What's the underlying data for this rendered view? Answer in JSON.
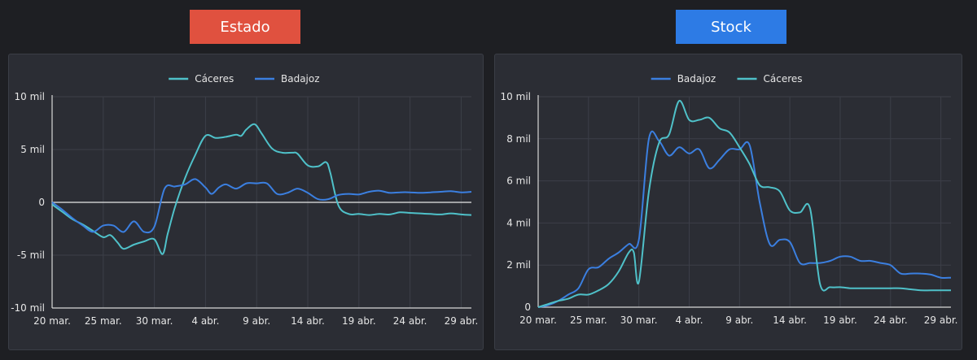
{
  "header": {
    "estado_label": "Estado",
    "estado_color": "#e0513f",
    "stock_label": "Stock",
    "stock_color": "#2d7be5"
  },
  "chart_data": [
    {
      "id": "estado",
      "type": "line",
      "ylim": [
        -10000,
        10000
      ],
      "yticks": [
        {
          "value": -10000,
          "label": "-10 mil"
        },
        {
          "value": -5000,
          "label": "-5 mil"
        },
        {
          "value": 0,
          "label": "0"
        },
        {
          "value": 5000,
          "label": "5 mil"
        },
        {
          "value": 10000,
          "label": "10 mil"
        }
      ],
      "xlim": [
        0,
        41
      ],
      "xticks": [
        {
          "day": 0,
          "label": "20 mar."
        },
        {
          "day": 5,
          "label": "25 mar."
        },
        {
          "day": 10,
          "label": "30 mar."
        },
        {
          "day": 15,
          "label": "4 abr."
        },
        {
          "day": 20,
          "label": "9 abr."
        },
        {
          "day": 25,
          "label": "14 abr."
        },
        {
          "day": 30,
          "label": "19 abr."
        },
        {
          "day": 35,
          "label": "24 abr."
        },
        {
          "day": 40,
          "label": "29 abr."
        }
      ],
      "zero_line": true,
      "legend": "top-center",
      "series": [
        {
          "name": "Cáceres",
          "color": "#4fc1c9",
          "points": [
            [
              0,
              -200
            ],
            [
              1,
              -900
            ],
            [
              2,
              -1600
            ],
            [
              3,
              -2100
            ],
            [
              4,
              -2700
            ],
            [
              5,
              -3300
            ],
            [
              5.7,
              -3100
            ],
            [
              6.4,
              -3800
            ],
            [
              7,
              -4400
            ],
            [
              8,
              -4000
            ],
            [
              9,
              -3700
            ],
            [
              10,
              -3500
            ],
            [
              10.8,
              -4900
            ],
            [
              11.3,
              -3000
            ],
            [
              12,
              -500
            ],
            [
              13,
              2300
            ],
            [
              14,
              4500
            ],
            [
              15,
              6300
            ],
            [
              16,
              6100
            ],
            [
              17,
              6200
            ],
            [
              18,
              6400
            ],
            [
              18.5,
              6300
            ],
            [
              19,
              6900
            ],
            [
              19.8,
              7400
            ],
            [
              20.5,
              6500
            ],
            [
              21.5,
              5100
            ],
            [
              22.5,
              4700
            ],
            [
              23.5,
              4700
            ],
            [
              24,
              4600
            ],
            [
              25,
              3500
            ],
            [
              26,
              3400
            ],
            [
              26.8,
              3800
            ],
            [
              27.2,
              2800
            ],
            [
              28,
              -300
            ],
            [
              29,
              -1100
            ],
            [
              30,
              -1100
            ],
            [
              31,
              -1200
            ],
            [
              32,
              -1100
            ],
            [
              33,
              -1150
            ],
            [
              34,
              -950
            ],
            [
              35,
              -1000
            ],
            [
              36,
              -1050
            ],
            [
              37,
              -1100
            ],
            [
              38,
              -1150
            ],
            [
              39,
              -1050
            ],
            [
              40,
              -1150
            ],
            [
              41,
              -1200
            ]
          ]
        },
        {
          "name": "Badajoz",
          "color": "#3b7fe0",
          "points": [
            [
              0,
              0
            ],
            [
              1,
              -700
            ],
            [
              2,
              -1500
            ],
            [
              3,
              -2200
            ],
            [
              4,
              -2800
            ],
            [
              5,
              -2200
            ],
            [
              6,
              -2200
            ],
            [
              7,
              -2800
            ],
            [
              8,
              -1800
            ],
            [
              9,
              -2800
            ],
            [
              10,
              -2300
            ],
            [
              11,
              1300
            ],
            [
              12,
              1500
            ],
            [
              13,
              1700
            ],
            [
              14,
              2200
            ],
            [
              15,
              1400
            ],
            [
              15.6,
              800
            ],
            [
              16.3,
              1400
            ],
            [
              17,
              1700
            ],
            [
              18,
              1300
            ],
            [
              19,
              1800
            ],
            [
              20,
              1800
            ],
            [
              21,
              1800
            ],
            [
              22,
              800
            ],
            [
              23,
              900
            ],
            [
              24,
              1300
            ],
            [
              25,
              900
            ],
            [
              26,
              300
            ],
            [
              27,
              300
            ],
            [
              28,
              700
            ],
            [
              29,
              800
            ],
            [
              30,
              750
            ],
            [
              31,
              1000
            ],
            [
              32,
              1100
            ],
            [
              33,
              900
            ],
            [
              34,
              950
            ],
            [
              35,
              950
            ],
            [
              36,
              900
            ],
            [
              37,
              950
            ],
            [
              38,
              1000
            ],
            [
              39,
              1050
            ],
            [
              40,
              950
            ],
            [
              41,
              1000
            ]
          ]
        }
      ]
    },
    {
      "id": "stock",
      "type": "line",
      "ylim": [
        0,
        10000
      ],
      "yticks": [
        {
          "value": 0,
          "label": "0"
        },
        {
          "value": 2000,
          "label": "2 mil"
        },
        {
          "value": 4000,
          "label": "4 mil"
        },
        {
          "value": 6000,
          "label": "6 mil"
        },
        {
          "value": 8000,
          "label": "8 mil"
        },
        {
          "value": 10000,
          "label": "10 mil"
        }
      ],
      "xlim": [
        0,
        41
      ],
      "xticks": [
        {
          "day": 0,
          "label": "20 mar."
        },
        {
          "day": 5,
          "label": "25 mar."
        },
        {
          "day": 10,
          "label": "30 mar."
        },
        {
          "day": 15,
          "label": "4 abr."
        },
        {
          "day": 20,
          "label": "9 abr."
        },
        {
          "day": 25,
          "label": "14 abr."
        },
        {
          "day": 30,
          "label": "19 abr."
        },
        {
          "day": 35,
          "label": "24 abr."
        },
        {
          "day": 40,
          "label": "29 abr."
        }
      ],
      "zero_line": false,
      "legend": "top-center",
      "series": [
        {
          "name": "Badajoz",
          "color": "#3b7fe0",
          "points": [
            [
              0,
              0
            ],
            [
              1,
              100
            ],
            [
              2,
              300
            ],
            [
              3,
              600
            ],
            [
              4,
              900
            ],
            [
              5,
              1800
            ],
            [
              6,
              1900
            ],
            [
              7,
              2300
            ],
            [
              8,
              2600
            ],
            [
              9,
              3000
            ],
            [
              10,
              3200
            ],
            [
              11,
              8000
            ],
            [
              12,
              7900
            ],
            [
              13,
              7200
            ],
            [
              14,
              7600
            ],
            [
              15,
              7300
            ],
            [
              16,
              7500
            ],
            [
              17,
              6600
            ],
            [
              18,
              7000
            ],
            [
              19,
              7500
            ],
            [
              20,
              7500
            ],
            [
              21,
              7700
            ],
            [
              22,
              5000
            ],
            [
              23,
              3000
            ],
            [
              24,
              3200
            ],
            [
              25,
              3100
            ],
            [
              26,
              2100
            ],
            [
              27,
              2100
            ],
            [
              28,
              2100
            ],
            [
              29,
              2200
            ],
            [
              30,
              2400
            ],
            [
              31,
              2400
            ],
            [
              32,
              2200
            ],
            [
              33,
              2200
            ],
            [
              34,
              2100
            ],
            [
              35,
              2000
            ],
            [
              36,
              1600
            ],
            [
              37,
              1600
            ],
            [
              38,
              1600
            ],
            [
              39,
              1550
            ],
            [
              40,
              1400
            ],
            [
              41,
              1400
            ]
          ]
        },
        {
          "name": "Cáceres",
          "color": "#4fc1c9",
          "points": [
            [
              0,
              0
            ],
            [
              1,
              150
            ],
            [
              2,
              300
            ],
            [
              3,
              400
            ],
            [
              4,
              600
            ],
            [
              5,
              600
            ],
            [
              6,
              800
            ],
            [
              7,
              1100
            ],
            [
              8,
              1700
            ],
            [
              9,
              2600
            ],
            [
              9.5,
              2600
            ],
            [
              10,
              1200
            ],
            [
              11,
              5500
            ],
            [
              12,
              7800
            ],
            [
              13,
              8200
            ],
            [
              14,
              9800
            ],
            [
              15,
              8900
            ],
            [
              16,
              8900
            ],
            [
              17,
              9000
            ],
            [
              18,
              8500
            ],
            [
              19,
              8300
            ],
            [
              20,
              7600
            ],
            [
              21,
              6800
            ],
            [
              22,
              5800
            ],
            [
              23,
              5700
            ],
            [
              24,
              5500
            ],
            [
              25,
              4600
            ],
            [
              26,
              4500
            ],
            [
              27,
              4700
            ],
            [
              28,
              1100
            ],
            [
              29,
              950
            ],
            [
              30,
              950
            ],
            [
              31,
              900
            ],
            [
              32,
              900
            ],
            [
              33,
              900
            ],
            [
              34,
              900
            ],
            [
              35,
              900
            ],
            [
              36,
              900
            ],
            [
              37,
              850
            ],
            [
              38,
              800
            ],
            [
              39,
              800
            ],
            [
              40,
              800
            ],
            [
              41,
              800
            ]
          ]
        }
      ]
    }
  ]
}
